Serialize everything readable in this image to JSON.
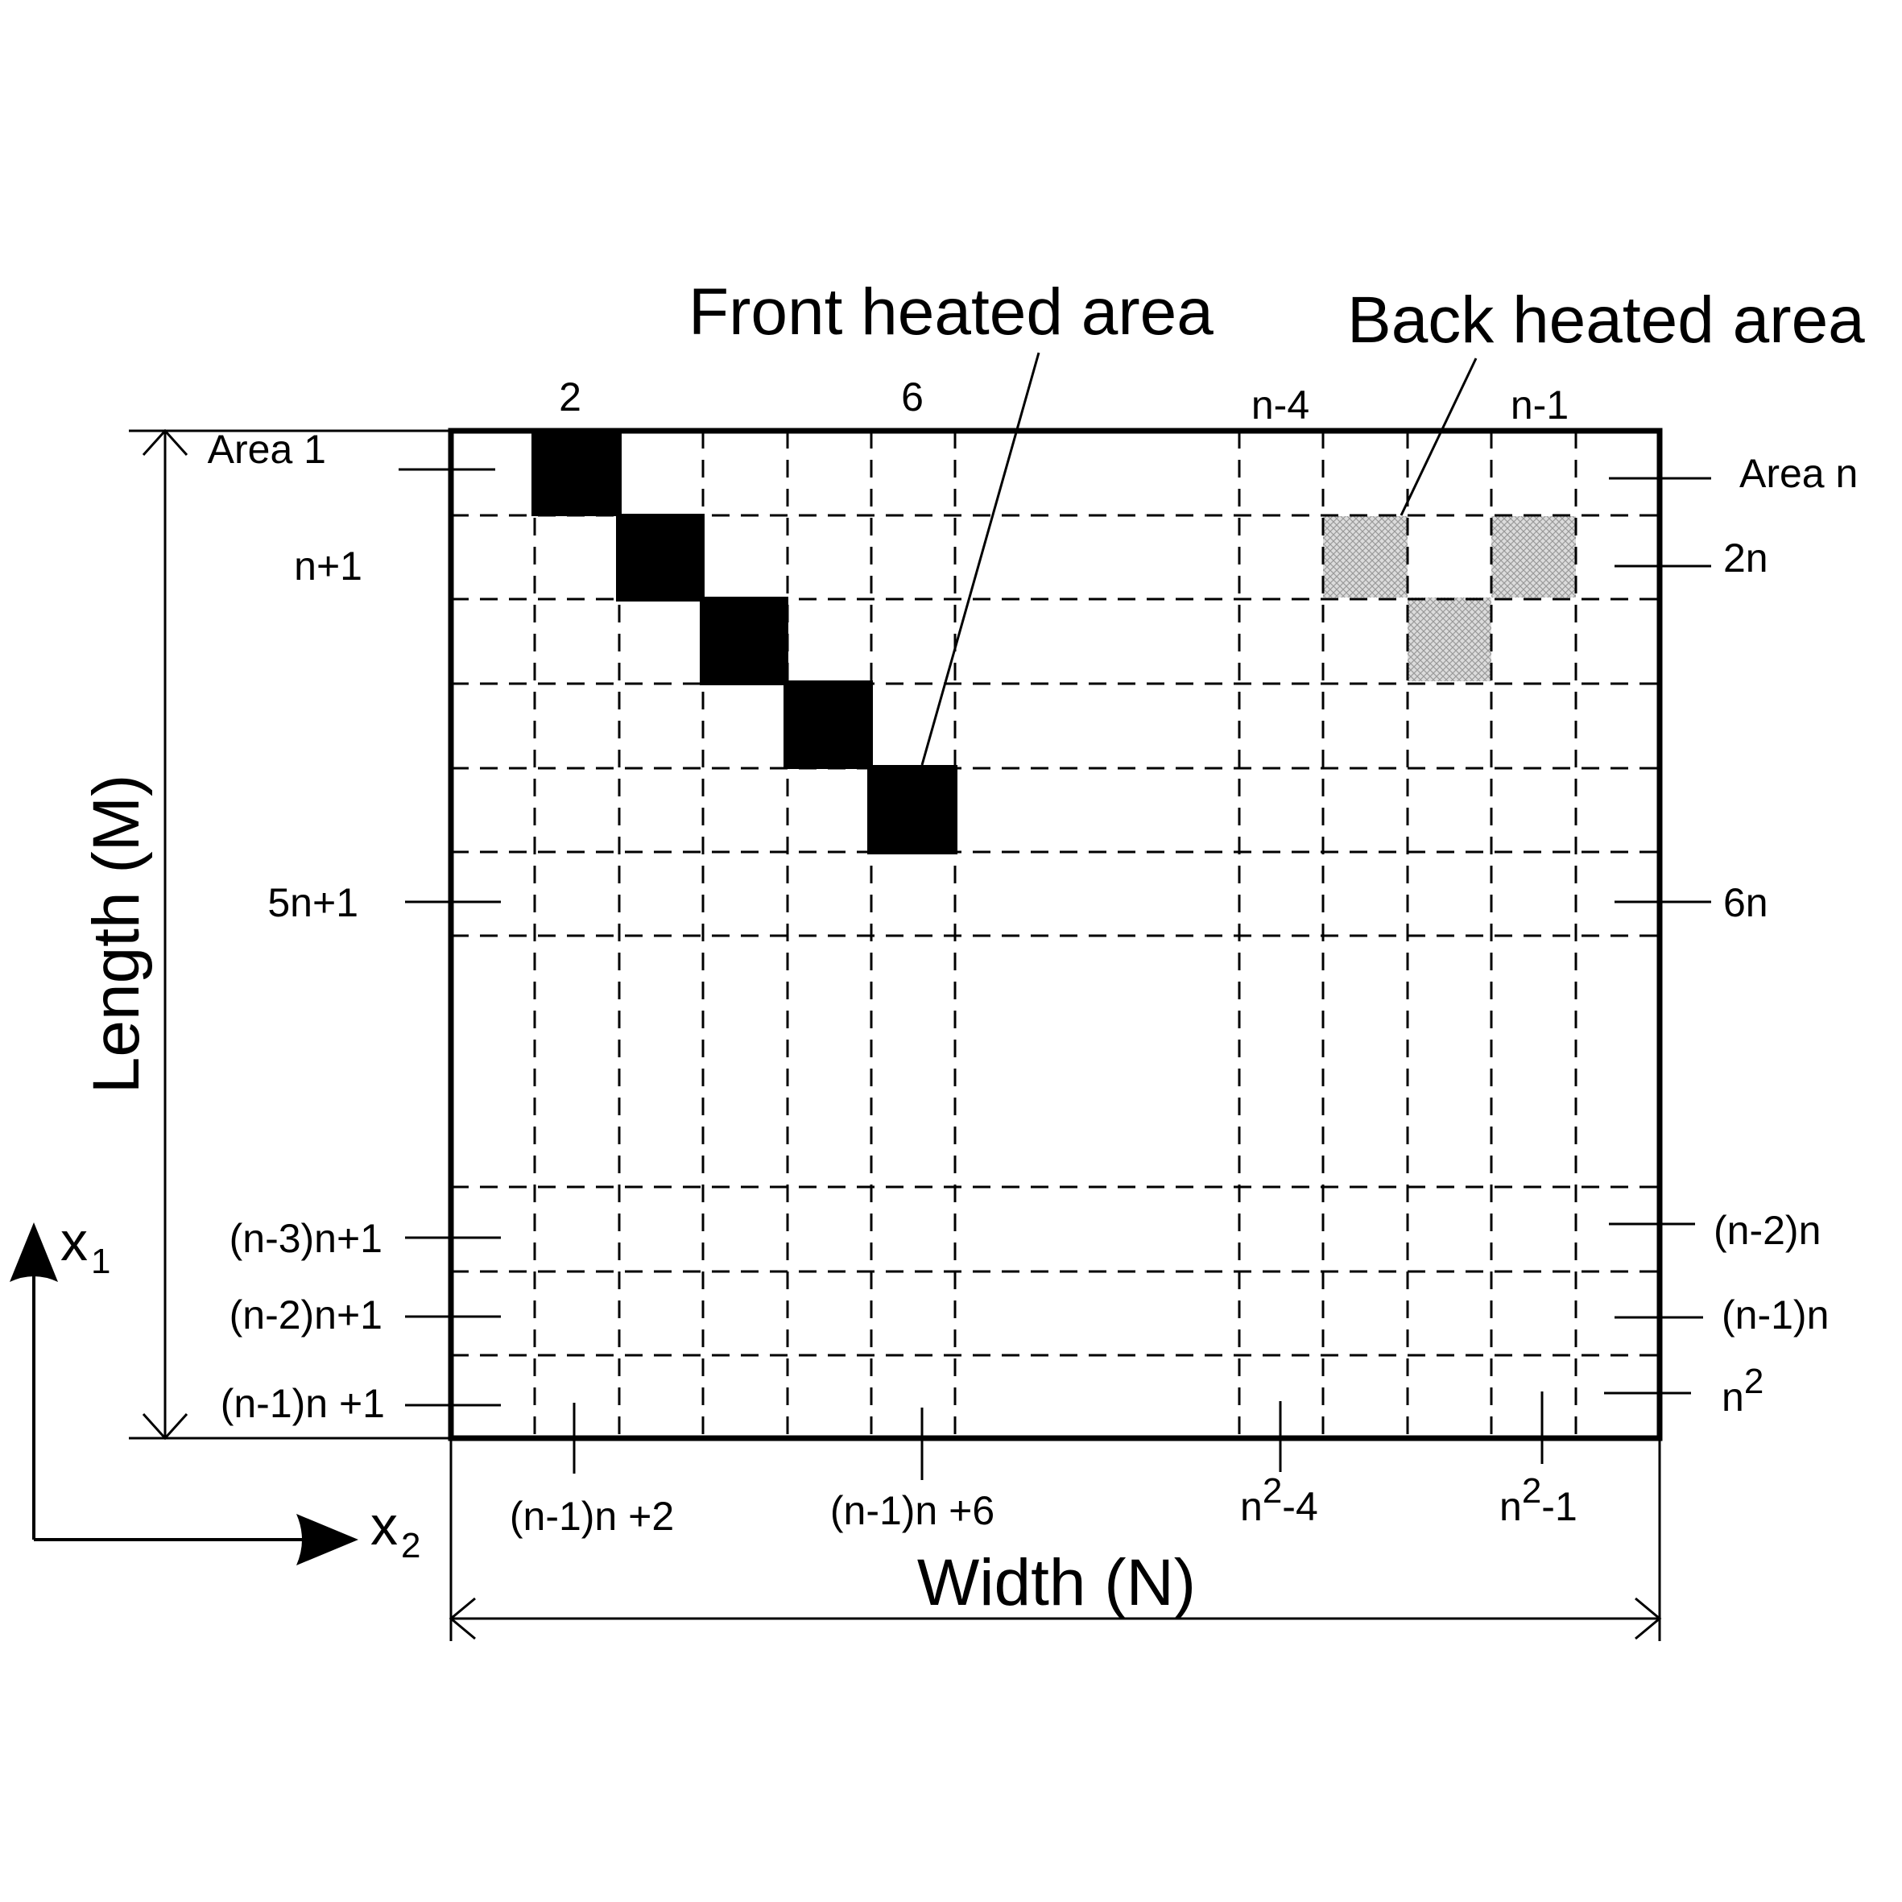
{
  "callouts": {
    "front": "Front heated area",
    "back": "Back heated area"
  },
  "dimensions": {
    "length": "Length (M)",
    "width": "Width (N)"
  },
  "axes": {
    "x1": "x",
    "x1_sub": "1",
    "x2": "x",
    "x2_sub": "2"
  },
  "top_labels": [
    "2",
    "6",
    "n-4",
    "n-1"
  ],
  "left_labels": [
    "Area 1",
    "n+1",
    "5n+1",
    "(n-3)n+1",
    "(n-2)n+1",
    "(n-1)n +1"
  ],
  "right_labels": [
    "Area n",
    "2n",
    "6n",
    "(n-2)n",
    "(n-1)n"
  ],
  "right_last": {
    "base": "n",
    "sup": "2"
  },
  "bottom_labels": [
    "(n-1)n +2",
    "(n-1)n +6"
  ],
  "bottom_sup_labels": [
    {
      "base": "n",
      "sup": "2",
      "rest": "-4"
    },
    {
      "base": "n",
      "sup": "2",
      "rest": "-1"
    }
  ],
  "colors": {
    "front_fill": "#000000",
    "back_fill": "#d0d0d0",
    "line": "#000000"
  }
}
